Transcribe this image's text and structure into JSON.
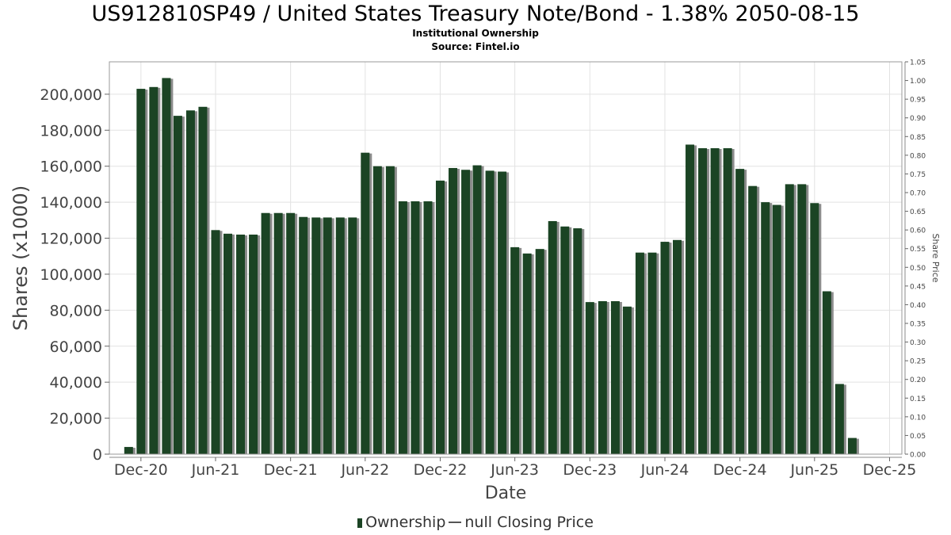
{
  "title": "US912810SP49 / United States Treasury Note/Bond - 1.38% 2050-08-15",
  "subtitle1": "Institutional Ownership",
  "subtitle2": "Source: Fintel.io",
  "legend": {
    "ownership": "Ownership",
    "closing": "null Closing Price"
  },
  "colors": {
    "bar": "#1b4424",
    "bar_shadow": "#8c8c8c",
    "grid": "#e2e2e2"
  },
  "chart_data": {
    "type": "bar",
    "xlabel": "Date",
    "ylabel": "Shares (x1000)",
    "y2label": "Share Price",
    "ylim": [
      0,
      218000
    ],
    "y2lim": [
      0,
      1.05
    ],
    "xlim": [
      "2020-09-15",
      "2025-12-31"
    ],
    "yticks": [
      0,
      20000,
      40000,
      60000,
      80000,
      100000,
      120000,
      140000,
      160000,
      180000,
      200000
    ],
    "ytick_labels": [
      "0",
      "20,000",
      "40,000",
      "60,000",
      "80,000",
      "100,000",
      "120,000",
      "140,000",
      "160,000",
      "180,000",
      "200,000"
    ],
    "y2ticks": [
      "0.00",
      "0.05",
      "0.10",
      "0.15",
      "0.20",
      "0.25",
      "0.30",
      "0.35",
      "0.40",
      "0.45",
      "0.50",
      "0.55",
      "0.60",
      "0.65",
      "0.70",
      "0.75",
      "0.80",
      "0.85",
      "0.90",
      "0.95",
      "1.00",
      "1.05"
    ],
    "xticks": [
      {
        "date": "2020-12-01",
        "label": "Dec-20"
      },
      {
        "date": "2021-06-01",
        "label": "Jun-21"
      },
      {
        "date": "2021-12-01",
        "label": "Dec-21"
      },
      {
        "date": "2022-06-01",
        "label": "Jun-22"
      },
      {
        "date": "2022-12-01",
        "label": "Dec-22"
      },
      {
        "date": "2023-06-01",
        "label": "Jun-23"
      },
      {
        "date": "2023-12-01",
        "label": "Dec-23"
      },
      {
        "date": "2024-06-01",
        "label": "Jun-24"
      },
      {
        "date": "2024-12-01",
        "label": "Dec-24"
      },
      {
        "date": "2025-06-01",
        "label": "Jun-25"
      },
      {
        "date": "2025-12-01",
        "label": "Dec-25"
      }
    ],
    "series": [
      {
        "name": "Ownership",
        "points": [
          [
            "2020-11-01",
            4000
          ],
          [
            "2020-12-01",
            203000
          ],
          [
            "2021-01-01",
            204000
          ],
          [
            "2021-02-01",
            209000
          ],
          [
            "2021-03-01",
            188000
          ],
          [
            "2021-04-01",
            191000
          ],
          [
            "2021-05-01",
            193000
          ],
          [
            "2021-06-01",
            124500
          ],
          [
            "2021-07-01",
            122500
          ],
          [
            "2021-08-01",
            122000
          ],
          [
            "2021-09-01",
            122000
          ],
          [
            "2021-10-01",
            134000
          ],
          [
            "2021-11-01",
            134000
          ],
          [
            "2021-12-01",
            134000
          ],
          [
            "2022-01-01",
            131800
          ],
          [
            "2022-02-01",
            131500
          ],
          [
            "2022-03-01",
            131500
          ],
          [
            "2022-04-01",
            131500
          ],
          [
            "2022-05-01",
            131500
          ],
          [
            "2022-06-01",
            167500
          ],
          [
            "2022-07-01",
            160000
          ],
          [
            "2022-08-01",
            160000
          ],
          [
            "2022-09-01",
            140500
          ],
          [
            "2022-10-01",
            140500
          ],
          [
            "2022-11-01",
            140500
          ],
          [
            "2022-12-01",
            152000
          ],
          [
            "2023-01-01",
            159000
          ],
          [
            "2023-02-01",
            158000
          ],
          [
            "2023-03-01",
            160500
          ],
          [
            "2023-04-01",
            157500
          ],
          [
            "2023-05-01",
            157000
          ],
          [
            "2023-06-01",
            115000
          ],
          [
            "2023-07-01",
            111500
          ],
          [
            "2023-08-01",
            114000
          ],
          [
            "2023-09-01",
            129500
          ],
          [
            "2023-10-01",
            126500
          ],
          [
            "2023-11-01",
            125500
          ],
          [
            "2023-12-01",
            84500
          ],
          [
            "2024-01-01",
            85000
          ],
          [
            "2024-02-01",
            85000
          ],
          [
            "2024-03-01",
            82000
          ],
          [
            "2024-04-01",
            112000
          ],
          [
            "2024-05-01",
            112000
          ],
          [
            "2024-06-01",
            118000
          ],
          [
            "2024-07-01",
            119000
          ],
          [
            "2024-08-01",
            172000
          ],
          [
            "2024-09-01",
            170000
          ],
          [
            "2024-10-01",
            170000
          ],
          [
            "2024-11-01",
            170000
          ],
          [
            "2024-12-01",
            158500
          ],
          [
            "2025-01-01",
            149000
          ],
          [
            "2025-02-01",
            140000
          ],
          [
            "2025-03-01",
            138500
          ],
          [
            "2025-04-01",
            150000
          ],
          [
            "2025-05-01",
            150000
          ],
          [
            "2025-06-01",
            139500
          ],
          [
            "2025-07-01",
            90500
          ],
          [
            "2025-08-01",
            39000
          ],
          [
            "2025-09-01",
            9000
          ]
        ]
      }
    ]
  }
}
